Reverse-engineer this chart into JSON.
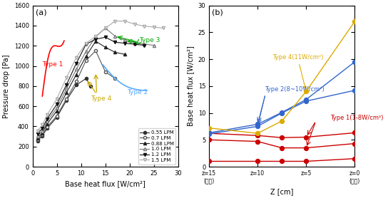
{
  "panel_a": {
    "title": "(a)",
    "xlabel": "Base heat flux [W/cm²]",
    "ylabel": "Pressure drop [Pa]",
    "xlim": [
      0,
      30
    ],
    "ylim": [
      0,
      1600
    ],
    "xticks": [
      0,
      5,
      10,
      15,
      20,
      25,
      30
    ],
    "yticks": [
      0,
      200,
      400,
      600,
      800,
      1000,
      1200,
      1400,
      1600
    ],
    "series": [
      {
        "label": "0.55 LPM",
        "color": "#333333",
        "marker": "o",
        "markerfacecolor": "#333333",
        "x": [
          1,
          2,
          3,
          5,
          7,
          9,
          11,
          12
        ],
        "y": [
          255,
          305,
          380,
          490,
          660,
          810,
          875,
          800
        ]
      },
      {
        "label": "0.7 LPM",
        "color": "#555555",
        "marker": "o",
        "markerfacecolor": "white",
        "x": [
          1,
          2,
          3,
          5,
          7,
          9,
          11,
          13,
          15,
          17
        ],
        "y": [
          270,
          315,
          395,
          505,
          675,
          845,
          1055,
          1150,
          940,
          875
        ]
      },
      {
        "label": "0.88 LPM",
        "color": "#222222",
        "marker": "^",
        "markerfacecolor": "#222222",
        "x": [
          1,
          2,
          3,
          5,
          7,
          9,
          11,
          13,
          15,
          17,
          19
        ],
        "y": [
          285,
          335,
          425,
          555,
          735,
          915,
          1095,
          1245,
          1185,
          1135,
          1115
        ]
      },
      {
        "label": "1.0 LPM",
        "color": "#777777",
        "marker": "^",
        "markerfacecolor": "white",
        "x": [
          1,
          2,
          3,
          5,
          7,
          9,
          11,
          13,
          15,
          17,
          19,
          21,
          23,
          25
        ],
        "y": [
          305,
          355,
          450,
          585,
          775,
          965,
          1145,
          1290,
          1375,
          1295,
          1255,
          1225,
          1215,
          1205
        ]
      },
      {
        "label": "1.2 LPM",
        "color": "#111111",
        "marker": "v",
        "markerfacecolor": "#111111",
        "x": [
          1,
          2,
          3,
          5,
          7,
          9,
          11,
          13,
          15,
          17,
          19,
          21,
          23
        ],
        "y": [
          325,
          380,
          475,
          620,
          815,
          1025,
          1215,
          1265,
          1285,
          1235,
          1225,
          1215,
          1205
        ]
      },
      {
        "label": "1.5 LPM",
        "color": "#aaaaaa",
        "marker": "v",
        "markerfacecolor": "white",
        "x": [
          1,
          2,
          3,
          5,
          7,
          9,
          11,
          13,
          15,
          17,
          19,
          21,
          23,
          25,
          27
        ],
        "y": [
          355,
          415,
          515,
          675,
          885,
          1085,
          1225,
          1295,
          1375,
          1445,
          1445,
          1415,
          1395,
          1385,
          1375
        ]
      }
    ]
  },
  "panel_b": {
    "title": "(b)",
    "xlabel": "Z [cm]",
    "ylabel": "Base heat flux [W/cm²]",
    "ylim": [
      0,
      30
    ],
    "yticks": [
      0,
      5,
      10,
      15,
      20,
      25,
      30
    ],
    "xtick_labels": [
      "z=15\n(출구)",
      "z=10",
      "z=5",
      "z=0\n(입구)"
    ],
    "xtick_pos": [
      15,
      10,
      5,
      0
    ],
    "type1_series": [
      {
        "x": [
          15,
          10,
          7.5,
          5,
          0
        ],
        "y": [
          5.0,
          4.7,
          3.5,
          3.5,
          4.3
        ]
      },
      {
        "x": [
          15,
          10,
          7.5,
          5,
          0
        ],
        "y": [
          6.2,
          5.8,
          5.4,
          5.5,
          6.3
        ]
      },
      {
        "x": [
          15,
          10,
          7.5,
          5,
          0
        ],
        "y": [
          1.0,
          1.0,
          1.0,
          1.0,
          1.5
        ]
      }
    ],
    "type2_series": [
      {
        "x": [
          15,
          10,
          7.5,
          5,
          0
        ],
        "y": [
          6.1,
          7.5,
          10.0,
          12.2,
          14.2
        ]
      },
      {
        "x": [
          15,
          10,
          7.5,
          5,
          0
        ],
        "y": [
          6.3,
          7.9,
          10.1,
          12.5,
          19.5
        ]
      }
    ],
    "type4_series": [
      {
        "x": [
          15,
          10,
          7.5,
          5,
          0
        ],
        "y": [
          7.2,
          6.2,
          8.5,
          14.0,
          27.0
        ]
      }
    ],
    "type1_color": "#cc0000",
    "type2_color": "#3366cc",
    "type4_color": "#ddaa00",
    "dot_size": 6
  }
}
